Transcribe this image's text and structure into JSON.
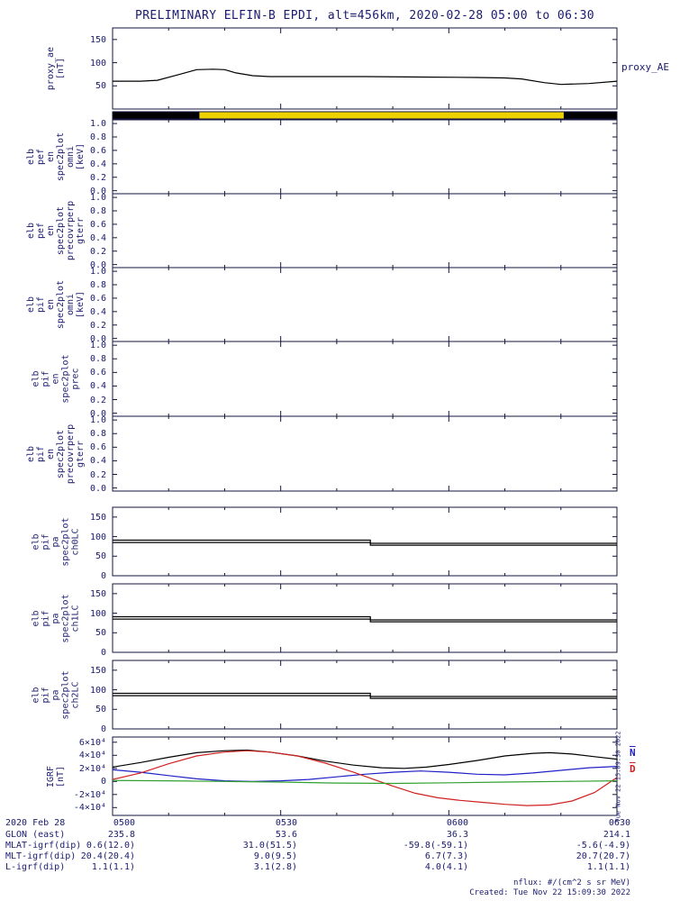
{
  "title": "PRELIMINARY ELFIN-B EPDI, alt=456km, 2020-02-28 05:00 to 06:30",
  "right_label": "proxy_AE",
  "side_timestamp": "Tue Nov 22 15:09:30 2022",
  "legend": {
    "n": "N",
    "d": "D"
  },
  "footer": {
    "nflux": "nflux: #/(cm^2 s sr MeV)",
    "created": "Created: Tue Nov 22 15:09:30 2022"
  },
  "colors": {
    "text": "#1b1b6e",
    "axis": "#15153f",
    "black": "#000000",
    "red": "#d02020",
    "blue": "#2020c8",
    "green": "#30a030",
    "yellow": "#edd100"
  },
  "bottom_rows": [
    {
      "label": "2020 Feb 28",
      "values": [
        "0500",
        "0530",
        "0600",
        "0630"
      ]
    },
    {
      "label": "GLON (east)",
      "values": [
        "235.8",
        "53.6",
        "36.3",
        "214.1"
      ]
    },
    {
      "label": "MLAT-igrf(dip)",
      "values": [
        "0.6(12.0)",
        "31.0(51.5)",
        "-59.8(-59.1)",
        "-5.6(-4.9)"
      ]
    },
    {
      "label": "MLT-igrf(dip)",
      "values": [
        "20.4(20.4)",
        "9.0(9.5)",
        "6.7(7.3)",
        "20.7(20.7)"
      ]
    },
    {
      "label": "L-igrf(dip)",
      "values": [
        "1.1(1.1)",
        "3.1(2.8)",
        "4.0(4.1)",
        "1.1(1.1)"
      ]
    }
  ],
  "chart_data": {
    "type": "multi-panel-time-series",
    "xaxis": {
      "date": "2020 Feb 28",
      "tick_labels": [
        "0500",
        "0530",
        "0600",
        "0630"
      ],
      "tick_minutes": [
        0,
        30,
        60,
        90
      ],
      "minor_step_minutes": 10,
      "range_minutes": [
        0,
        90
      ]
    },
    "panels": [
      {
        "id": "proxy_ae",
        "type": "line",
        "ylabel_lines": [
          "proxy_ae",
          "[nT]"
        ],
        "yticks": [
          50,
          100,
          150
        ],
        "ytick_labels": [
          "50",
          "100",
          "150"
        ],
        "yrange": [
          0,
          175
        ],
        "series": [
          {
            "name": "proxy_AE",
            "color": "#000000",
            "x": [
              0,
              5,
              8,
              12,
              15,
              18,
              20,
              22,
              25,
              28,
              35,
              45,
              55,
              65,
              70,
              73,
              77,
              80,
              85,
              90
            ],
            "y": [
              60,
              60,
              62,
              75,
              85,
              86,
              85,
              78,
              72,
              70,
              70,
              70,
              69,
              68,
              67,
              65,
              57,
              53,
              55,
              60
            ]
          }
        ]
      },
      {
        "id": "sun_bar",
        "type": "band",
        "segments": [
          {
            "from": 0,
            "to": 15.5,
            "color": "#000000"
          },
          {
            "from": 15.5,
            "to": 80.5,
            "color": "#edd100"
          },
          {
            "from": 80.5,
            "to": 90,
            "color": "#000000"
          }
        ]
      },
      {
        "id": "pef_en_omni",
        "type": "spec-empty",
        "ylabel_lines": [
          "elb",
          "pef",
          "en",
          "spec2plot",
          "omni",
          "[keV]"
        ],
        "yticks": [
          0,
          0.2,
          0.4,
          0.6,
          0.8,
          1.0
        ],
        "ytick_labels": [
          "0.0",
          "0.2",
          "0.4",
          "0.6",
          "0.8",
          "1.0"
        ],
        "yrange": [
          -0.045,
          1.055
        ],
        "series": []
      },
      {
        "id": "pef_en_precovrperp",
        "type": "spec-empty",
        "ylabel_lines": [
          "elb",
          "pef",
          "en",
          "spec2plot",
          "precovrperp",
          "gterr"
        ],
        "yticks": [
          0,
          0.2,
          0.4,
          0.6,
          0.8,
          1.0
        ],
        "ytick_labels": [
          "0.0",
          "0.2",
          "0.4",
          "0.6",
          "0.8",
          "1.0"
        ],
        "yrange": [
          -0.045,
          1.055
        ],
        "series": []
      },
      {
        "id": "pif_en_omni",
        "type": "spec-empty",
        "ylabel_lines": [
          "elb",
          "pif",
          "en",
          "spec2plot",
          "omni",
          "[keV]"
        ],
        "yticks": [
          0,
          0.2,
          0.4,
          0.6,
          0.8,
          1.0
        ],
        "ytick_labels": [
          "0.0",
          "0.2",
          "0.4",
          "0.6",
          "0.8",
          "1.0"
        ],
        "yrange": [
          -0.045,
          1.055
        ],
        "series": []
      },
      {
        "id": "pif_en_prec",
        "type": "spec-empty",
        "ylabel_lines": [
          "elb",
          "pif",
          "en",
          "spec2plot",
          "prec"
        ],
        "yticks": [
          0,
          0.2,
          0.4,
          0.6,
          0.8,
          1.0
        ],
        "ytick_labels": [
          "0.0",
          "0.2",
          "0.4",
          "0.6",
          "0.8",
          "1.0"
        ],
        "yrange": [
          -0.045,
          1.055
        ],
        "series": []
      },
      {
        "id": "pif_en_precovrperp",
        "type": "spec-empty",
        "ylabel_lines": [
          "elb",
          "pif",
          "en",
          "spec2plot",
          "precovrperp",
          "gterr"
        ],
        "yticks": [
          0,
          0.2,
          0.4,
          0.6,
          0.8,
          1.0
        ],
        "ytick_labels": [
          "0.0",
          "0.2",
          "0.4",
          "0.6",
          "0.8",
          "1.0"
        ],
        "yrange": [
          -0.045,
          1.055
        ],
        "series": []
      },
      {
        "id": "ch0lc",
        "type": "line",
        "ylabel_lines": [
          "elb",
          "pif",
          "pa",
          "spec2plot",
          "ch0LC"
        ],
        "yticks": [
          0,
          50,
          100,
          150
        ],
        "ytick_labels": [
          "0",
          "50",
          "100",
          "150"
        ],
        "yrange": [
          0,
          175
        ],
        "series": [
          {
            "name": "losscone-upper",
            "color": "#000000",
            "x": [
              0,
              46,
              46,
              90
            ],
            "y": [
              91,
              91,
              83,
              83
            ]
          },
          {
            "name": "losscone-lower",
            "color": "#000000",
            "x": [
              0,
              46,
              46,
              90
            ],
            "y": [
              85,
              85,
              78,
              78
            ]
          }
        ]
      },
      {
        "id": "ch1lc",
        "type": "line",
        "ylabel_lines": [
          "elb",
          "pif",
          "pa",
          "spec2plot",
          "ch1LC"
        ],
        "yticks": [
          0,
          50,
          100,
          150
        ],
        "ytick_labels": [
          "0",
          "50",
          "100",
          "150"
        ],
        "yrange": [
          0,
          175
        ],
        "series": [
          {
            "name": "losscone-upper",
            "color": "#000000",
            "x": [
              0,
              46,
              46,
              90
            ],
            "y": [
              91,
              91,
              83,
              83
            ]
          },
          {
            "name": "losscone-lower",
            "color": "#000000",
            "x": [
              0,
              46,
              46,
              90
            ],
            "y": [
              85,
              85,
              78,
              78
            ]
          }
        ]
      },
      {
        "id": "ch2lc",
        "type": "line",
        "ylabel_lines": [
          "elb",
          "pif",
          "pa",
          "spec2plot",
          "ch2LC"
        ],
        "yticks": [
          0,
          50,
          100,
          150
        ],
        "ytick_labels": [
          "0",
          "50",
          "100",
          "150"
        ],
        "yrange": [
          0,
          175
        ],
        "series": [
          {
            "name": "losscone-upper",
            "color": "#000000",
            "x": [
              0,
              46,
              46,
              90
            ],
            "y": [
              91,
              91,
              83,
              83
            ]
          },
          {
            "name": "losscone-lower",
            "color": "#000000",
            "x": [
              0,
              46,
              46,
              90
            ],
            "y": [
              85,
              85,
              78,
              78
            ]
          }
        ]
      },
      {
        "id": "igrf",
        "type": "line",
        "ylabel_lines": [
          "IGRF",
          "[nT]"
        ],
        "yticks": [
          -40000,
          -20000,
          0,
          20000,
          40000,
          60000
        ],
        "ytick_labels": [
          "-4×10⁴",
          "-2×10⁴",
          "0",
          "2×10⁴",
          "4×10⁴",
          "6×10⁴"
        ],
        "yrange": [
          -52000,
          68000
        ],
        "series": [
          {
            "name": "B",
            "color": "#000000",
            "x": [
              0,
              5,
              10,
              15,
              20,
              24,
              28,
              33,
              38,
              43,
              48,
              52,
              56,
              60,
              65,
              70,
              75,
              78,
              82,
              86,
              90
            ],
            "y": [
              22000,
              29000,
              37000,
              44000,
              47000,
              48000,
              45000,
              39000,
              31000,
              25000,
              21000,
              20000,
              22000,
              26000,
              32000,
              39000,
              43000,
              44000,
              42000,
              38000,
              34000
            ]
          },
          {
            "name": "N",
            "color": "#2020c8",
            "x": [
              0,
              5,
              10,
              15,
              20,
              25,
              30,
              35,
              40,
              45,
              50,
              55,
              60,
              65,
              70,
              75,
              80,
              85,
              90
            ],
            "y": [
              18000,
              14000,
              9000,
              4000,
              1000,
              0,
              1000,
              3000,
              7000,
              11000,
              14000,
              16000,
              14000,
              11000,
              10000,
              13000,
              17000,
              21000,
              23000
            ]
          },
          {
            "name": "D",
            "color": "#d02020",
            "x": [
              0,
              5,
              10,
              15,
              20,
              24,
              28,
              33,
              38,
              43,
              47,
              50,
              54,
              58,
              62,
              66,
              70,
              74,
              78,
              82,
              86,
              90
            ],
            "y": [
              3000,
              13000,
              27000,
              39000,
              45000,
              47000,
              45000,
              39000,
              28000,
              14000,
              2000,
              -7000,
              -18000,
              -25000,
              -29000,
              -32000,
              -35000,
              -37000,
              -36000,
              -30000,
              -17000,
              6000
            ]
          },
          {
            "name": "E",
            "color": "#30a030",
            "x": [
              0,
              10,
              20,
              30,
              40,
              50,
              60,
              70,
              80,
              90
            ],
            "y": [
              1500,
              1000,
              0,
              -1000,
              -2500,
              -3000,
              -2000,
              -1000,
              0,
              1000
            ]
          }
        ],
        "legend": [
          {
            "label": "N",
            "color": "#2020c8"
          },
          {
            "label": "D",
            "color": "#d02020"
          }
        ]
      }
    ]
  }
}
